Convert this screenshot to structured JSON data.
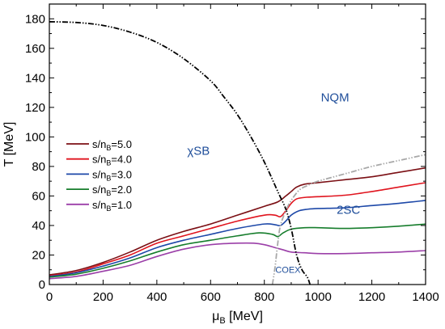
{
  "chart_data": {
    "type": "line",
    "xlabel": "μ",
    "xlabel_sub": "B",
    "xlabel_unit": " [MeV]",
    "ylabel": "T [MeV]",
    "xlim": [
      0,
      1400
    ],
    "ylim": [
      0,
      190
    ],
    "x_ticks": [
      0,
      200,
      400,
      600,
      800,
      1000,
      1200,
      1400
    ],
    "y_ticks": [
      0,
      20,
      40,
      60,
      80,
      100,
      120,
      140,
      160,
      180
    ],
    "grid": false,
    "legend_position": "middle-left",
    "series": [
      {
        "name_main": "s/n",
        "name_sub": "B",
        "name_rest": "=5.0",
        "color": "#7b0f14",
        "x": [
          0,
          100,
          200,
          300,
          400,
          500,
          600,
          700,
          800,
          850,
          880,
          900,
          920,
          950,
          1000,
          1100,
          1200,
          1300,
          1400
        ],
        "y": [
          6.5,
          9.5,
          15,
          22,
          30,
          36,
          41,
          47,
          53,
          56,
          60,
          63,
          66,
          68,
          69,
          71,
          73,
          76,
          79
        ]
      },
      {
        "name_main": "s/n",
        "name_sub": "B",
        "name_rest": "=4.0",
        "color": "#e0141e",
        "x": [
          0,
          100,
          200,
          300,
          400,
          500,
          600,
          700,
          800,
          840,
          860,
          880,
          900,
          920,
          950,
          1000,
          1100,
          1200,
          1300,
          1400
        ],
        "y": [
          6,
          8.5,
          14,
          20,
          28,
          33,
          38,
          43,
          47,
          47,
          46,
          50,
          55,
          58,
          59,
          59.5,
          60.5,
          63,
          66,
          69
        ]
      },
      {
        "name_main": "s/n",
        "name_sub": "B",
        "name_rest": "=3.0",
        "color": "#1d48a8",
        "x": [
          0,
          100,
          200,
          300,
          400,
          500,
          600,
          700,
          800,
          840,
          860,
          880,
          900,
          930,
          960,
          1000,
          1100,
          1200,
          1300,
          1400
        ],
        "y": [
          5.5,
          8,
          12.5,
          18,
          25,
          30,
          34,
          38,
          41,
          40.5,
          40,
          43,
          47,
          50,
          51,
          51.5,
          52,
          53.5,
          55,
          57
        ]
      },
      {
        "name_main": "s/n",
        "name_sub": "B",
        "name_rest": "=2.0",
        "color": "#167d2c",
        "x": [
          0,
          100,
          200,
          300,
          400,
          500,
          600,
          700,
          780,
          830,
          850,
          870,
          900,
          950,
          1000,
          1100,
          1200,
          1300,
          1400
        ],
        "y": [
          5,
          7,
          11,
          16,
          22,
          27,
          30,
          33,
          35,
          34,
          32.5,
          35,
          37.5,
          38.5,
          38.5,
          38,
          38.5,
          39.5,
          41
        ]
      },
      {
        "name_main": "s/n",
        "name_sub": "B",
        "name_rest": "=1.0",
        "color": "#9b3fa8",
        "x": [
          0,
          100,
          200,
          300,
          400,
          500,
          600,
          700,
          760,
          800,
          840,
          870,
          900,
          950,
          1000,
          1100,
          1200,
          1300,
          1400
        ],
        "y": [
          4,
          5.5,
          9,
          13,
          19,
          24,
          27,
          28,
          28,
          27,
          25,
          23.5,
          22,
          21.5,
          21,
          21,
          21.5,
          22,
          23
        ]
      }
    ],
    "boundaries": [
      {
        "id": "chiral-boundary",
        "color": "#000000",
        "x": [
          0,
          100,
          200,
          300,
          400,
          500,
          600,
          650,
          700,
          750,
          800,
          850,
          880,
          900,
          920,
          940,
          960,
          970
        ],
        "y": [
          178,
          177.5,
          175.5,
          171,
          164,
          153,
          138,
          127,
          115,
          100,
          83,
          63,
          51,
          38,
          20,
          10,
          5,
          0
        ]
      },
      {
        "id": "coex-boundary",
        "color": "#a8a8a8",
        "x": [
          830,
          840,
          850,
          860,
          880,
          900,
          930,
          960,
          1000,
          1100,
          1200,
          1300,
          1400
        ],
        "y": [
          0,
          12,
          28,
          40,
          50,
          57,
          64,
          67,
          70,
          75,
          80,
          84,
          88
        ]
      }
    ],
    "annotations": [
      {
        "text_main": "χSB",
        "x": 555,
        "y": 88,
        "kind": "region"
      },
      {
        "text_main": "NQM",
        "x": 1063,
        "y": 124,
        "kind": "region"
      },
      {
        "text_main": "2SC",
        "x": 1113,
        "y": 48,
        "kind": "region"
      },
      {
        "text_main": "COEX",
        "x": 888,
        "y": 8,
        "kind": "small"
      }
    ]
  }
}
